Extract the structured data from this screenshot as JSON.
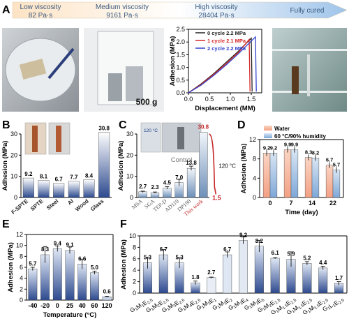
{
  "panelA": {
    "letter": "A",
    "stages": [
      {
        "title": "Low viscosity",
        "value": "82 Pa·s"
      },
      {
        "title": "Medium viscosity",
        "value": "9161 Pa·s"
      },
      {
        "title": "High viscosity",
        "value": "28404 Pa·s"
      },
      {
        "title": "Fully cured",
        "value": ""
      }
    ],
    "weight_label": "500 g"
  },
  "panelB": {
    "letter": "B",
    "xcat_rot": true
  },
  "panelC": {
    "letter": "C",
    "inset_temp": "120 °C",
    "control_label": "Control",
    "curve_temp": "120 °C"
  },
  "panelD": {
    "letter": "D"
  },
  "panelE": {
    "letter": "E"
  },
  "panelF": {
    "letter": "F"
  },
  "chart_data": [
    {
      "id": "A",
      "type": "line",
      "xlabel": "Displacement (MM)",
      "ylabel": "Adhesion (MPa)",
      "xlim": [
        0,
        1.75
      ],
      "ylim": [
        0,
        2.5
      ],
      "xticks": [
        "0.0",
        "0.5",
        "1.0",
        "1.5"
      ],
      "yticks": [
        "0.0",
        "0.5",
        "1.0",
        "1.5",
        "2.0",
        "2.5"
      ],
      "series": [
        {
          "name": "0 cycle 2.2 MPa",
          "color": "#222222",
          "x": [
            0,
            0.3,
            0.6,
            0.9,
            1.2,
            1.5,
            1.52
          ],
          "y": [
            0,
            0.35,
            0.75,
            1.2,
            1.65,
            2.15,
            0.05
          ]
        },
        {
          "name": "1 cycle 2.1 MPa",
          "color": "#d62728",
          "x": [
            0,
            0.3,
            0.6,
            0.9,
            1.2,
            1.45,
            1.47
          ],
          "y": [
            0,
            0.33,
            0.72,
            1.15,
            1.6,
            2.1,
            0.05
          ]
        },
        {
          "name": "2 cycle 2.2 MPa",
          "color": "#3344cc",
          "x": [
            0,
            0.3,
            0.6,
            0.9,
            1.2,
            1.6,
            1.62
          ],
          "y": [
            0,
            0.3,
            0.68,
            1.1,
            1.55,
            2.2,
            0.05
          ]
        }
      ]
    },
    {
      "id": "B",
      "type": "bar",
      "ylabel": "Adhesion (MPa)",
      "ylim": [
        0,
        30
      ],
      "yticks": [
        "0",
        "10",
        "20",
        "30"
      ],
      "categories": [
        "F-SPTE",
        "SPTE",
        "Steel",
        "Al",
        "Wood",
        "Glass"
      ],
      "values": [
        9.2,
        8.1,
        6.7,
        7.7,
        8.4,
        30.8
      ],
      "labels": [
        "9.2",
        "8.1",
        "6.7",
        "7.7",
        "8.4",
        "30.8"
      ]
    },
    {
      "id": "C",
      "type": "bar",
      "ylabel": "Adhesion (MPa)",
      "ylim": [
        0,
        30
      ],
      "yticks": [
        "0",
        "10",
        "20",
        "30"
      ],
      "categories": [
        "MSA",
        "SGA",
        "TEP-D",
        "AD110",
        "DP190",
        "This work"
      ],
      "values": [
        2.7,
        2.3,
        4.5,
        7.0,
        13.8,
        30.8
      ],
      "labels": [
        "2.7",
        "2.3",
        "4.5",
        "7.0",
        "13.8",
        "30.8"
      ],
      "extra_label": "1.5"
    },
    {
      "id": "D",
      "type": "bar",
      "ylabel": "Adhesion (MPa)",
      "xlabel": "Time (day)",
      "ylim": [
        0,
        12
      ],
      "yticks": [
        "0",
        "4",
        "8",
        "12"
      ],
      "categories": [
        "0",
        "7",
        "14",
        "22"
      ],
      "series": [
        {
          "name": "Water",
          "values": [
            9.2,
            9.9,
            8.3,
            6.7
          ],
          "labels": [
            "9.2",
            "9.9",
            "8.3",
            "6.7"
          ]
        },
        {
          "name": "60 °C/90% humidity",
          "values": [
            9.2,
            9.9,
            8.2,
            5.7
          ],
          "labels": [
            "9.2",
            "9.9",
            "8.2",
            "5.7"
          ]
        }
      ]
    },
    {
      "id": "E",
      "type": "bar",
      "ylabel": "Adhesion (MPa)",
      "xlabel": "Temperature (°C)",
      "ylim": [
        0,
        12
      ],
      "yticks": [
        "0",
        "2",
        "4",
        "6",
        "8",
        "10",
        "12"
      ],
      "categories": [
        "-40",
        "-20",
        "0",
        "25",
        "40",
        "60",
        "120"
      ],
      "values": [
        5.7,
        8.3,
        9.4,
        9.1,
        6.6,
        5.0,
        0.6
      ],
      "labels": [
        "5.7",
        "8.3",
        "9.4",
        "9.1",
        "6.6",
        "5.0",
        "0.6"
      ]
    },
    {
      "id": "F",
      "type": "bar",
      "ylabel": "Adhesion (MPa)",
      "ylim": [
        0,
        10
      ],
      "yticks": [
        "0",
        "2",
        "4",
        "6",
        "8",
        "10"
      ],
      "categories": [
        {
          "base": "G",
          "parts": [
            [
              "",
              "1"
            ],
            [
              "M",
              "1"
            ],
            [
              "E",
              "2.5"
            ]
          ]
        },
        {
          "base": "G",
          "parts": [
            [
              "",
              "1"
            ],
            [
              "M",
              "2"
            ],
            [
              "E",
              "2.5"
            ]
          ]
        },
        {
          "base": "G",
          "parts": [
            [
              "",
              "1"
            ],
            [
              "M",
              "3"
            ],
            [
              "E",
              "2.5"
            ]
          ]
        },
        {
          "base": "G",
          "parts": [
            [
              "",
              "1"
            ],
            [
              "M",
              "4"
            ],
            [
              "E",
              "2.5"
            ]
          ]
        },
        {
          "base": "G",
          "parts": [
            [
              "",
              "1"
            ],
            [
              "M",
              "3"
            ],
            [
              "E",
              "1"
            ]
          ]
        },
        {
          "base": "G",
          "parts": [
            [
              "",
              "1"
            ],
            [
              "M",
              "3"
            ],
            [
              "E",
              "2"
            ]
          ]
        },
        {
          "base": "G",
          "parts": [
            [
              "",
              "1"
            ],
            [
              "M",
              "3"
            ],
            [
              "E",
              "4"
            ]
          ]
        },
        {
          "base": "G",
          "parts": [
            [
              "",
              "1"
            ],
            [
              "M",
              "3"
            ],
            [
              "E",
              "5"
            ]
          ]
        },
        {
          "base": "G",
          "parts": [
            [
              "",
              "1"
            ],
            [
              "M",
              "2"
            ],
            [
              "E",
              "2.5"
            ]
          ]
        },
        {
          "base": "G",
          "parts": [
            [
              "",
              "1"
            ],
            [
              "M",
              "1.5"
            ],
            [
              "E",
              "2.5"
            ]
          ]
        },
        {
          "base": "G",
          "parts": [
            [
              "",
              "1"
            ],
            [
              "M",
              "1.5"
            ],
            [
              "E",
              "2.5"
            ]
          ]
        },
        {
          "base": "G",
          "parts": [
            [
              "",
              "1"
            ],
            [
              "M",
              "1.5"
            ],
            [
              "E",
              "2.5"
            ]
          ]
        },
        {
          "base": "G",
          "parts": [
            [
              "",
              "1"
            ],
            [
              "L",
              "1"
            ],
            [
              "E",
              "2.5"
            ]
          ]
        }
      ],
      "values": [
        5.3,
        6.7,
        5.3,
        1.8,
        2.7,
        6.7,
        9.2,
        8.2,
        6.1,
        5.9,
        5.2,
        4.4,
        1.7
      ],
      "labels": [
        "5.3",
        "6.7",
        "5.3",
        "1.8",
        "2.7",
        "6.7",
        "9.2",
        "8.2",
        "6.1",
        "5.9",
        "5.2",
        "4.4",
        "1.7"
      ]
    }
  ]
}
